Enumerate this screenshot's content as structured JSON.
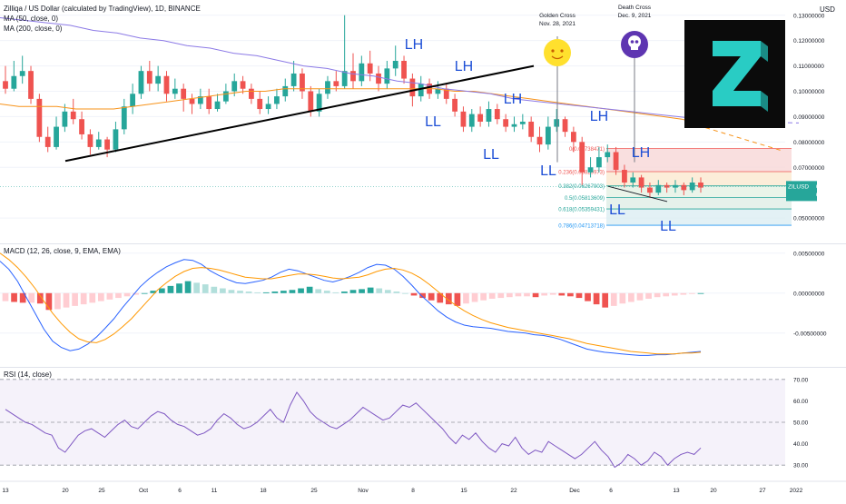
{
  "header": {
    "title": "Zilliqa / US Dollar (calculated by TradingView), 1D, BINANCE",
    "ma50": "MA (50, close, 0)",
    "ma200": "MA (200, close, 0)",
    "macd": "MACD (12, 26, close, 9, EMA, EMA)",
    "rsi": "RSI (14, close)",
    "currency": "USD"
  },
  "colors": {
    "up": "#26a69a",
    "down": "#ef5350",
    "ma50": "#f7931a",
    "ma200": "#8c7ae6",
    "macd": "#2962ff",
    "signal": "#ff9800",
    "rsi": "#7e57c2",
    "axis_text": "#131722",
    "grid": "#f0f3fa"
  },
  "chart_data": [
    {
      "type": "candlestick",
      "title": "Zilliqa / US Dollar (calculated by TradingView), 1D, BINANCE",
      "ylim": [
        0.04,
        0.136
      ],
      "y_ticks": [
        0.13,
        0.12,
        0.11,
        0.1,
        0.09,
        0.08,
        0.07,
        0.05
      ],
      "y_tick_labels": [
        "0.13000000",
        "0.12000000",
        "0.11000000",
        "0.10000000",
        "0.09000000",
        "0.08000000",
        "0.07000000",
        "0.05000000"
      ],
      "x_tick_labels": [
        "13",
        "20",
        "25",
        "Oct",
        "6",
        "11",
        "18",
        "25",
        "Nov",
        "8",
        "15",
        "22",
        "Dec",
        "6",
        "13",
        "20",
        "27",
        "2022"
      ],
      "last_price_label": "ZILUSD",
      "last_price": "0.06243155",
      "countdown": "03:56:37",
      "candle_sample": [
        {
          "o": 0.104,
          "c": 0.101,
          "h": 0.11,
          "l": 0.099
        },
        {
          "o": 0.101,
          "c": 0.106,
          "h": 0.112,
          "l": 0.1
        },
        {
          "o": 0.106,
          "c": 0.108,
          "h": 0.114,
          "l": 0.103
        },
        {
          "o": 0.108,
          "c": 0.097,
          "h": 0.11,
          "l": 0.095
        },
        {
          "o": 0.097,
          "c": 0.082,
          "h": 0.099,
          "l": 0.08
        },
        {
          "o": 0.082,
          "c": 0.078,
          "h": 0.086,
          "l": 0.076
        },
        {
          "o": 0.078,
          "c": 0.086,
          "h": 0.09,
          "l": 0.077
        },
        {
          "o": 0.086,
          "c": 0.092,
          "h": 0.095,
          "l": 0.084
        },
        {
          "o": 0.092,
          "c": 0.089,
          "h": 0.097,
          "l": 0.087
        },
        {
          "o": 0.089,
          "c": 0.083,
          "h": 0.092,
          "l": 0.081
        },
        {
          "o": 0.083,
          "c": 0.078,
          "h": 0.085,
          "l": 0.075
        },
        {
          "o": 0.078,
          "c": 0.081,
          "h": 0.084,
          "l": 0.077
        },
        {
          "o": 0.081,
          "c": 0.077,
          "h": 0.082,
          "l": 0.074
        },
        {
          "o": 0.077,
          "c": 0.085,
          "h": 0.088,
          "l": 0.076
        },
        {
          "o": 0.085,
          "c": 0.094,
          "h": 0.097,
          "l": 0.083
        },
        {
          "o": 0.094,
          "c": 0.099,
          "h": 0.103,
          "l": 0.091
        },
        {
          "o": 0.099,
          "c": 0.108,
          "h": 0.11,
          "l": 0.097
        },
        {
          "o": 0.108,
          "c": 0.103,
          "h": 0.112,
          "l": 0.1
        },
        {
          "o": 0.103,
          "c": 0.106,
          "h": 0.11,
          "l": 0.1
        },
        {
          "o": 0.106,
          "c": 0.099,
          "h": 0.108,
          "l": 0.096
        },
        {
          "o": 0.099,
          "c": 0.101,
          "h": 0.105,
          "l": 0.097
        },
        {
          "o": 0.101,
          "c": 0.097,
          "h": 0.103,
          "l": 0.092
        },
        {
          "o": 0.097,
          "c": 0.095,
          "h": 0.099,
          "l": 0.091
        },
        {
          "o": 0.095,
          "c": 0.098,
          "h": 0.101,
          "l": 0.093
        },
        {
          "o": 0.098,
          "c": 0.093,
          "h": 0.101,
          "l": 0.091
        },
        {
          "o": 0.093,
          "c": 0.096,
          "h": 0.099,
          "l": 0.092
        },
        {
          "o": 0.096,
          "c": 0.1,
          "h": 0.103,
          "l": 0.095
        },
        {
          "o": 0.1,
          "c": 0.104,
          "h": 0.107,
          "l": 0.098
        },
        {
          "o": 0.104,
          "c": 0.101,
          "h": 0.106,
          "l": 0.099
        },
        {
          "o": 0.101,
          "c": 0.097,
          "h": 0.103,
          "l": 0.095
        },
        {
          "o": 0.097,
          "c": 0.093,
          "h": 0.1,
          "l": 0.091
        },
        {
          "o": 0.093,
          "c": 0.095,
          "h": 0.098,
          "l": 0.091
        },
        {
          "o": 0.095,
          "c": 0.098,
          "h": 0.101,
          "l": 0.093
        },
        {
          "o": 0.098,
          "c": 0.102,
          "h": 0.105,
          "l": 0.096
        },
        {
          "o": 0.102,
          "c": 0.107,
          "h": 0.112,
          "l": 0.1
        },
        {
          "o": 0.107,
          "c": 0.1,
          "h": 0.109,
          "l": 0.097
        },
        {
          "o": 0.1,
          "c": 0.092,
          "h": 0.102,
          "l": 0.09
        },
        {
          "o": 0.092,
          "c": 0.099,
          "h": 0.101,
          "l": 0.09
        },
        {
          "o": 0.099,
          "c": 0.104,
          "h": 0.106,
          "l": 0.097
        },
        {
          "o": 0.104,
          "c": 0.102,
          "h": 0.108,
          "l": 0.1
        },
        {
          "o": 0.102,
          "c": 0.108,
          "h": 0.13,
          "l": 0.101
        },
        {
          "o": 0.108,
          "c": 0.104,
          "h": 0.115,
          "l": 0.101
        },
        {
          "o": 0.104,
          "c": 0.111,
          "h": 0.114,
          "l": 0.102
        },
        {
          "o": 0.111,
          "c": 0.107,
          "h": 0.116,
          "l": 0.104
        },
        {
          "o": 0.107,
          "c": 0.103,
          "h": 0.11,
          "l": 0.1
        },
        {
          "o": 0.103,
          "c": 0.109,
          "h": 0.112,
          "l": 0.101
        },
        {
          "o": 0.109,
          "c": 0.112,
          "h": 0.118,
          "l": 0.106
        },
        {
          "o": 0.112,
          "c": 0.105,
          "h": 0.114,
          "l": 0.103
        },
        {
          "o": 0.105,
          "c": 0.098,
          "h": 0.107,
          "l": 0.094
        },
        {
          "o": 0.098,
          "c": 0.103,
          "h": 0.106,
          "l": 0.096
        },
        {
          "o": 0.103,
          "c": 0.099,
          "h": 0.105,
          "l": 0.097
        },
        {
          "o": 0.099,
          "c": 0.101,
          "h": 0.104,
          "l": 0.097
        },
        {
          "o": 0.101,
          "c": 0.097,
          "h": 0.103,
          "l": 0.095
        },
        {
          "o": 0.097,
          "c": 0.092,
          "h": 0.099,
          "l": 0.09
        },
        {
          "o": 0.092,
          "c": 0.086,
          "h": 0.094,
          "l": 0.084
        },
        {
          "o": 0.086,
          "c": 0.091,
          "h": 0.093,
          "l": 0.084
        },
        {
          "o": 0.091,
          "c": 0.088,
          "h": 0.094,
          "l": 0.086
        },
        {
          "o": 0.088,
          "c": 0.093,
          "h": 0.096,
          "l": 0.086
        },
        {
          "o": 0.093,
          "c": 0.089,
          "h": 0.095,
          "l": 0.087
        },
        {
          "o": 0.089,
          "c": 0.086,
          "h": 0.091,
          "l": 0.084
        },
        {
          "o": 0.086,
          "c": 0.087,
          "h": 0.09,
          "l": 0.084
        },
        {
          "o": 0.087,
          "c": 0.088,
          "h": 0.091,
          "l": 0.085
        },
        {
          "o": 0.088,
          "c": 0.082,
          "h": 0.09,
          "l": 0.08
        },
        {
          "o": 0.082,
          "c": 0.079,
          "h": 0.086,
          "l": 0.076
        },
        {
          "o": 0.079,
          "c": 0.086,
          "h": 0.09,
          "l": 0.077
        },
        {
          "o": 0.086,
          "c": 0.089,
          "h": 0.093,
          "l": 0.084
        },
        {
          "o": 0.089,
          "c": 0.084,
          "h": 0.09,
          "l": 0.082
        },
        {
          "o": 0.084,
          "c": 0.08,
          "h": 0.086,
          "l": 0.076
        },
        {
          "o": 0.08,
          "c": 0.068,
          "h": 0.082,
          "l": 0.063
        },
        {
          "o": 0.068,
          "c": 0.07,
          "h": 0.074,
          "l": 0.066
        },
        {
          "o": 0.07,
          "c": 0.074,
          "h": 0.078,
          "l": 0.068
        },
        {
          "o": 0.074,
          "c": 0.076,
          "h": 0.079,
          "l": 0.072
        },
        {
          "o": 0.076,
          "c": 0.069,
          "h": 0.078,
          "l": 0.067
        },
        {
          "o": 0.069,
          "c": 0.064,
          "h": 0.071,
          "l": 0.062
        },
        {
          "o": 0.064,
          "c": 0.066,
          "h": 0.068,
          "l": 0.062
        },
        {
          "o": 0.066,
          "c": 0.062,
          "h": 0.067,
          "l": 0.06
        },
        {
          "o": 0.062,
          "c": 0.06,
          "h": 0.064,
          "l": 0.058
        },
        {
          "o": 0.06,
          "c": 0.063,
          "h": 0.065,
          "l": 0.059
        },
        {
          "o": 0.063,
          "c": 0.062,
          "h": 0.064,
          "l": 0.06
        },
        {
          "o": 0.062,
          "c": 0.063,
          "h": 0.065,
          "l": 0.06
        },
        {
          "o": 0.063,
          "c": 0.061,
          "h": 0.064,
          "l": 0.059
        },
        {
          "o": 0.061,
          "c": 0.064,
          "h": 0.066,
          "l": 0.06
        },
        {
          "o": 0.064,
          "c": 0.062,
          "h": 0.066,
          "l": 0.06
        }
      ],
      "ma50": [
        0.095,
        0.094,
        0.094,
        0.094,
        0.093,
        0.093,
        0.093,
        0.094,
        0.095,
        0.096,
        0.097,
        0.098,
        0.099,
        0.1,
        0.1,
        0.101,
        0.101,
        0.101,
        0.101,
        0.101,
        0.101,
        0.101,
        0.101,
        0.101,
        0.1,
        0.1,
        0.099,
        0.098,
        0.097,
        0.096,
        0.095,
        0.094,
        0.093,
        0.092,
        0.091,
        0.09,
        0.089,
        0.087
      ],
      "ma200": [
        0.129,
        0.128,
        0.127,
        0.126,
        0.124,
        0.123,
        0.121,
        0.12,
        0.118,
        0.117,
        0.115,
        0.114,
        0.112,
        0.11,
        0.109,
        0.107,
        0.106,
        0.104,
        0.103,
        0.101,
        0.1,
        0.099,
        0.097,
        0.096,
        0.095,
        0.094,
        0.093,
        0.092,
        0.091,
        0.09,
        0.089
      ],
      "annotations": [
        "LH",
        "LH",
        "LH",
        "LH",
        "LH",
        "LL",
        "LL",
        "LL",
        "LL",
        "LL",
        "Golden Cross",
        "Nov. 28, 2021",
        "Death Cross",
        "Dec. 9, 2021"
      ],
      "fibonacci": [
        {
          "label": "0(0.07738471)",
          "value": 0.07738471
        },
        {
          "label": "0.236(0.06829973)",
          "value": 0.06829973
        },
        {
          "label": "0.382(0.06267903)",
          "value": 0.06267903
        },
        {
          "label": "0.5(0.05813609)",
          "value": 0.05813609
        },
        {
          "label": "0.618(0.05359431)",
          "value": 0.05359431
        },
        {
          "label": "0.786(0.04713718)",
          "value": 0.04713718
        }
      ]
    },
    {
      "type": "bar",
      "title": "MACD (12, 26, close, 9, EMA, EMA)",
      "ylim": [
        -0.009,
        0.006
      ],
      "y_ticks": [
        0.005,
        0.0,
        -0.005
      ],
      "y_tick_labels": [
        "0.00500000",
        "0.00000000",
        "-0.00500000"
      ],
      "histogram": [
        -0.001,
        -0.0011,
        -0.0012,
        -0.0012,
        -0.0013,
        -0.0021,
        -0.002,
        -0.0018,
        -0.0016,
        -0.0014,
        -0.0012,
        -0.001,
        -0.0008,
        -0.0006,
        -0.0004,
        -0.0002,
        0.0,
        0.0003,
        0.0006,
        0.0009,
        0.0012,
        0.0015,
        0.0013,
        0.0011,
        0.0008,
        0.0006,
        0.0004,
        0.0003,
        0.0002,
        0.0001,
        0.0001,
        0.0002,
        0.0003,
        0.0004,
        0.0006,
        0.0008,
        0.0005,
        0.0003,
        0.0001,
        0.0002,
        0.0004,
        0.0005,
        0.0007,
        0.0006,
        0.0004,
        0.0002,
        0.0,
        -0.0003,
        -0.0006,
        -0.0009,
        -0.0012,
        -0.0014,
        -0.0016,
        -0.0013,
        -0.0011,
        -0.0009,
        -0.0007,
        -0.0006,
        -0.0005,
        -0.0004,
        -0.0004,
        -0.0005,
        -0.0003,
        -0.0002,
        -0.0003,
        -0.0004,
        -0.0006,
        -0.001,
        -0.0014,
        -0.0018,
        -0.0016,
        -0.0013,
        -0.0011,
        -0.0009,
        -0.0007,
        -0.0005,
        -0.0004,
        -0.0003,
        -0.0002,
        -0.0001,
        0.0
      ],
      "macd_line": [
        0.004,
        0.003,
        0.0015,
        -0.0005,
        -0.0025,
        -0.0045,
        -0.006,
        -0.0068,
        -0.0072,
        -0.007,
        -0.0064,
        -0.0055,
        -0.0044,
        -0.0032,
        -0.0018,
        -0.0005,
        0.0008,
        0.0018,
        0.0026,
        0.0033,
        0.0038,
        0.0042,
        0.0041,
        0.0036,
        0.0028,
        0.0022,
        0.0017,
        0.0013,
        0.0012,
        0.0014,
        0.0016,
        0.002,
        0.0026,
        0.003,
        0.0028,
        0.0024,
        0.002,
        0.0016,
        0.0014,
        0.0017,
        0.0021,
        0.0026,
        0.0032,
        0.0036,
        0.0035,
        0.003,
        0.0021,
        0.001,
        -0.0002,
        -0.0012,
        -0.0022,
        -0.003,
        -0.0036,
        -0.004,
        -0.0042,
        -0.0043,
        -0.0044,
        -0.0046,
        -0.0048,
        -0.0049,
        -0.005,
        -0.0052,
        -0.0053,
        -0.0055,
        -0.0058,
        -0.0062,
        -0.0066,
        -0.007,
        -0.0072,
        -0.0074,
        -0.0075,
        -0.0076,
        -0.0077,
        -0.0078,
        -0.0078,
        -0.0077,
        -0.0077,
        -0.0076,
        -0.0075,
        -0.0074,
        -0.0073
      ],
      "signal_line": [
        0.005,
        0.0042,
        0.0032,
        0.002,
        0.0006,
        -0.001,
        -0.0025,
        -0.0038,
        -0.0049,
        -0.0057,
        -0.0061,
        -0.0062,
        -0.0058,
        -0.0051,
        -0.0042,
        -0.0032,
        -0.002,
        -0.0008,
        0.0004,
        0.0013,
        0.0021,
        0.0027,
        0.0031,
        0.0032,
        0.0031,
        0.0029,
        0.0026,
        0.0023,
        0.002,
        0.0019,
        0.0018,
        0.0018,
        0.002,
        0.0022,
        0.0024,
        0.0024,
        0.0023,
        0.0021,
        0.0019,
        0.0018,
        0.0019,
        0.002,
        0.0023,
        0.0027,
        0.003,
        0.0031,
        0.0029,
        0.0025,
        0.0019,
        0.0011,
        0.0002,
        -0.0007,
        -0.0015,
        -0.0022,
        -0.0028,
        -0.0033,
        -0.0037,
        -0.004,
        -0.0043,
        -0.0045,
        -0.0047,
        -0.0049,
        -0.0051,
        -0.0053,
        -0.0055,
        -0.0057,
        -0.006,
        -0.0063,
        -0.0065,
        -0.0067,
        -0.0069,
        -0.0071,
        -0.0073,
        -0.0074,
        -0.0075,
        -0.0076,
        -0.0076,
        -0.0076,
        -0.0075,
        -0.0075,
        -0.0074
      ]
    },
    {
      "type": "line",
      "title": "RSI (14, close)",
      "ylim": [
        25,
        75
      ],
      "y_ticks": [
        70,
        60,
        50,
        40,
        30
      ],
      "y_tick_labels": [
        "70.00",
        "60.00",
        "50.00",
        "40.00",
        "30.00"
      ],
      "band": [
        30,
        70
      ],
      "values": [
        56,
        54,
        52,
        50,
        49,
        47,
        45,
        44,
        38,
        36,
        40,
        44,
        46,
        47,
        45,
        43,
        46,
        49,
        51,
        48,
        47,
        50,
        53,
        55,
        54,
        51,
        49,
        48,
        46,
        44,
        45,
        47,
        51,
        54,
        52,
        49,
        47,
        48,
        50,
        53,
        56,
        52,
        50,
        58,
        64,
        60,
        55,
        52,
        50,
        48,
        47,
        49,
        51,
        54,
        57,
        55,
        53,
        51,
        52,
        55,
        58,
        57,
        59,
        56,
        53,
        50,
        47,
        43,
        40,
        44,
        42,
        45,
        41,
        38,
        36,
        40,
        39,
        43,
        38,
        35,
        37,
        36,
        41,
        39,
        37,
        35,
        33,
        35,
        38,
        41,
        37,
        34,
        29,
        31,
        35,
        33,
        30,
        32,
        36,
        34,
        30,
        33,
        35,
        36,
        35,
        38
      ]
    }
  ]
}
